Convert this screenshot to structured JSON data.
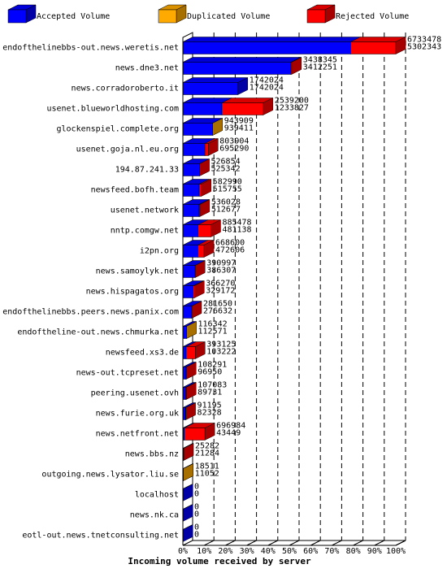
{
  "chart_data": {
    "type": "bar3d_stacked_horizontal",
    "x_label": "Incoming volume received by server",
    "categories": [
      "endofthelinebbs-out.news.weretis.net",
      "news.dne3.net",
      "news.corradoroberto.it",
      "usenet.blueworldhosting.com",
      "glockenspiel.complete.org",
      "usenet.goja.nl.eu.org",
      "194.87.241.33",
      "newsfeed.bofh.team",
      "usenet.network",
      "nntp.comgw.net",
      "i2pn.org",
      "news.samoylyk.net",
      "news.hispagatos.org",
      "endofthelinebbs.peers.news.panix.com",
      "endoftheline-out.news.chmurka.net",
      "newsfeed.xs3.de",
      "news-out.tcpreset.net",
      "peering.usenet.ovh",
      "news.furie.org.uk",
      "news.netfront.net",
      "news.bbs.nz",
      "outgoing.news.lysator.liu.se",
      "localhost",
      "news.nk.ca",
      "eotl-out.news.tnetconsulting.net"
    ],
    "totals": [
      6733478,
      3438345,
      1742024,
      2539200,
      943909,
      803904,
      526854,
      582990,
      536028,
      885478,
      668600,
      390997,
      366270,
      281650,
      116342,
      393125,
      108291,
      107083,
      91195,
      696984,
      25282,
      18511,
      0,
      0,
      0
    ],
    "series": [
      {
        "name": "Accepted Volume",
        "color": "#0000ff",
        "values": [
          5302343,
          3412251,
          1742024,
          1233827,
          939411,
          695290,
          525342,
          515755,
          512677,
          481138,
          472606,
          386307,
          329172,
          276632,
          112571,
          103222,
          96950,
          89731,
          82328,
          43449,
          21284,
          11052,
          0,
          0,
          0
        ]
      },
      {
        "name": "Duplicated Volume",
        "color": "#ffaa00",
        "values": [
          0,
          0,
          0,
          0,
          4498,
          0,
          0,
          0,
          0,
          0,
          0,
          0,
          0,
          0,
          3771,
          0,
          0,
          0,
          0,
          0,
          0,
          7459,
          0,
          0,
          0
        ]
      },
      {
        "name": "Rejected Volume",
        "color": "#ff0000",
        "values": [
          1431135,
          26094,
          0,
          1305373,
          0,
          108614,
          1512,
          67235,
          23351,
          404340,
          195994,
          4690,
          37098,
          5018,
          0,
          289903,
          11341,
          17352,
          8867,
          653535,
          3998,
          0,
          0,
          0,
          0
        ]
      }
    ],
    "xlim": [
      0,
      6733478
    ],
    "xticks": [
      {
        "value": 0,
        "label": "0%"
      },
      {
        "value": 673347.8,
        "label": "10%"
      },
      {
        "value": 1346695.6,
        "label": "20%"
      },
      {
        "value": 2020043.4,
        "label": "30%"
      },
      {
        "value": 2693391.2,
        "label": "40%"
      },
      {
        "value": 3366739,
        "label": "50%"
      },
      {
        "value": 4040086.8,
        "label": "60%"
      },
      {
        "value": 4713434.6,
        "label": "70%"
      },
      {
        "value": 5386782.4,
        "label": "80%"
      },
      {
        "value": 6060130.2,
        "label": "90%"
      },
      {
        "value": 6733478,
        "label": "100%"
      }
    ],
    "grid": true
  }
}
